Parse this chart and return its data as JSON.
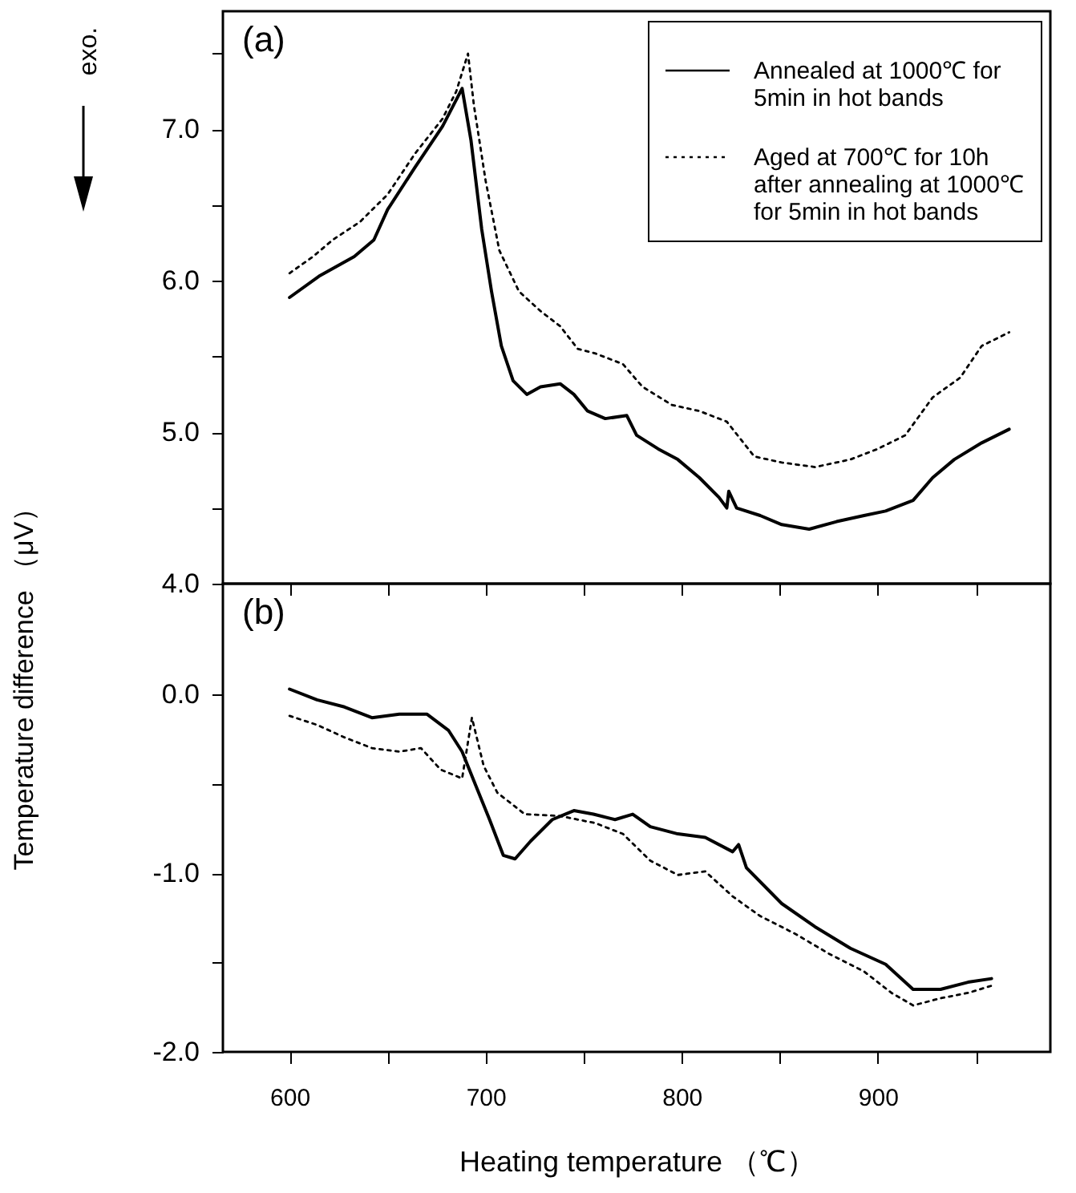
{
  "chart_data": [
    {
      "type": "line",
      "ylabel": "Temperature difference （μV）",
      "annotations": [
        "(a)",
        "exo."
      ],
      "xlim": [
        566,
        988
      ],
      "xticks": [
        600,
        {
          "value": 650,
          "label": null
        },
        700,
        {
          "value": 750,
          "label": null
        },
        800,
        {
          "value": 850,
          "label": null
        },
        900,
        {
          "value": 950,
          "label": null
        }
      ],
      "ylim": [
        4.0,
        7.78
      ],
      "yticks": [
        "4.0",
        {
          "value": 4.5,
          "label": null
        },
        {
          "value": 5,
          "label": "5.0"
        },
        {
          "value": 5.5,
          "label": null
        },
        {
          "value": 6,
          "label": "6.0"
        },
        {
          "value": 6.5,
          "label": null
        },
        {
          "value": 7,
          "label": "7.0"
        },
        {
          "value": 7.5,
          "label": null
        }
      ],
      "tick_labels": "y",
      "legend": "top right",
      "marker": "none",
      "series": [
        {
          "name": "Annealed at 1000℃ for 5min in hot bands",
          "color": "#000000",
          "line_style": "solid",
          "x": [
            600,
            615,
            633,
            643,
            650,
            664,
            678,
            688,
            692.5,
            698,
            703,
            708,
            714,
            721,
            728,
            738,
            745,
            752,
            761,
            772,
            777,
            788,
            798,
            809,
            819,
            823,
            824,
            828,
            840,
            851,
            865,
            879,
            893,
            904,
            918,
            928,
            939,
            953,
            967
          ],
          "values": [
            5.89,
            6.03,
            6.16,
            6.27,
            6.47,
            6.75,
            7.02,
            7.27,
            6.93,
            6.34,
            5.93,
            5.57,
            5.34,
            5.25,
            5.3,
            5.32,
            5.25,
            5.14,
            5.09,
            5.11,
            4.98,
            4.89,
            4.82,
            4.7,
            4.57,
            4.5,
            4.61,
            4.5,
            4.45,
            4.39,
            4.36,
            4.41,
            4.45,
            4.48,
            4.55,
            4.7,
            4.82,
            4.93,
            5.02
          ]
        },
        {
          "name": "Aged at 700℃ for 10h after annealing at 1000℃ for 5min in hot bands",
          "color": "#000000",
          "line_style": "dotted",
          "x": [
            600,
            612,
            622,
            636,
            650,
            664,
            678,
            685,
            691,
            694,
            700,
            707,
            717,
            728,
            738,
            747,
            756,
            770,
            780,
            795,
            809,
            823,
            837,
            851,
            868,
            886,
            900,
            914,
            928,
            942,
            953,
            967
          ],
          "values": [
            6.05,
            6.16,
            6.27,
            6.39,
            6.57,
            6.84,
            7.07,
            7.25,
            7.5,
            7.16,
            6.66,
            6.2,
            5.93,
            5.8,
            5.7,
            5.55,
            5.52,
            5.45,
            5.3,
            5.18,
            5.14,
            5.07,
            4.84,
            4.8,
            4.77,
            4.82,
            4.89,
            4.98,
            5.23,
            5.36,
            5.57,
            5.66
          ]
        }
      ]
    },
    {
      "type": "line",
      "xlabel": "Heating temperature （℃）",
      "annotations": [
        "(b)"
      ],
      "xlim": [
        566,
        988
      ],
      "xticks": [
        600,
        {
          "value": 650,
          "label": null
        },
        700,
        {
          "value": 750,
          "label": null
        },
        800,
        {
          "value": 850,
          "label": null
        },
        900,
        {
          "value": 950,
          "label": null
        }
      ],
      "ylim": [
        -2.0,
        0.62
      ],
      "yticks": [
        {
          "value": -2,
          "label": "-2.0"
        },
        {
          "value": -1.5,
          "label": null
        },
        {
          "value": -1,
          "label": "-1.0"
        },
        {
          "value": -0.5,
          "label": null
        },
        {
          "value": 0,
          "label": "0.0"
        }
      ],
      "marker": "none",
      "series": [
        {
          "color": "#000000",
          "line_style": "solid",
          "x": [
            600,
            614,
            628,
            642,
            656,
            670,
            681,
            688,
            695,
            702,
            709,
            715,
            723,
            734,
            745,
            755,
            766,
            775,
            784,
            798,
            812,
            826,
            829,
            833,
            851,
            868,
            886,
            904,
            918,
            932,
            946,
            958
          ],
          "values": [
            0.03,
            -0.03,
            -0.07,
            -0.13,
            -0.11,
            -0.11,
            -0.2,
            -0.32,
            -0.51,
            -0.7,
            -0.9,
            -0.92,
            -0.82,
            -0.7,
            -0.65,
            -0.67,
            -0.7,
            -0.67,
            -0.74,
            -0.78,
            -0.8,
            -0.88,
            -0.84,
            -0.97,
            -1.17,
            -1.3,
            -1.42,
            -1.51,
            -1.65,
            -1.65,
            -1.61,
            -1.59
          ]
        },
        {
          "color": "#000000",
          "line_style": "dotted",
          "x": [
            600,
            614,
            628,
            642,
            656,
            667,
            677,
            688,
            693,
            699,
            706,
            720,
            738,
            756,
            770,
            784,
            798,
            812,
            826,
            840,
            858,
            875,
            893,
            907,
            918,
            932,
            946,
            958
          ],
          "values": [
            -0.12,
            -0.17,
            -0.24,
            -0.3,
            -0.32,
            -0.3,
            -0.42,
            -0.47,
            -0.13,
            -0.4,
            -0.55,
            -0.67,
            -0.68,
            -0.72,
            -0.78,
            -0.93,
            -1.01,
            -0.99,
            -1.13,
            -1.24,
            -1.34,
            -1.45,
            -1.55,
            -1.67,
            -1.74,
            -1.7,
            -1.67,
            -1.63
          ]
        }
      ]
    }
  ]
}
